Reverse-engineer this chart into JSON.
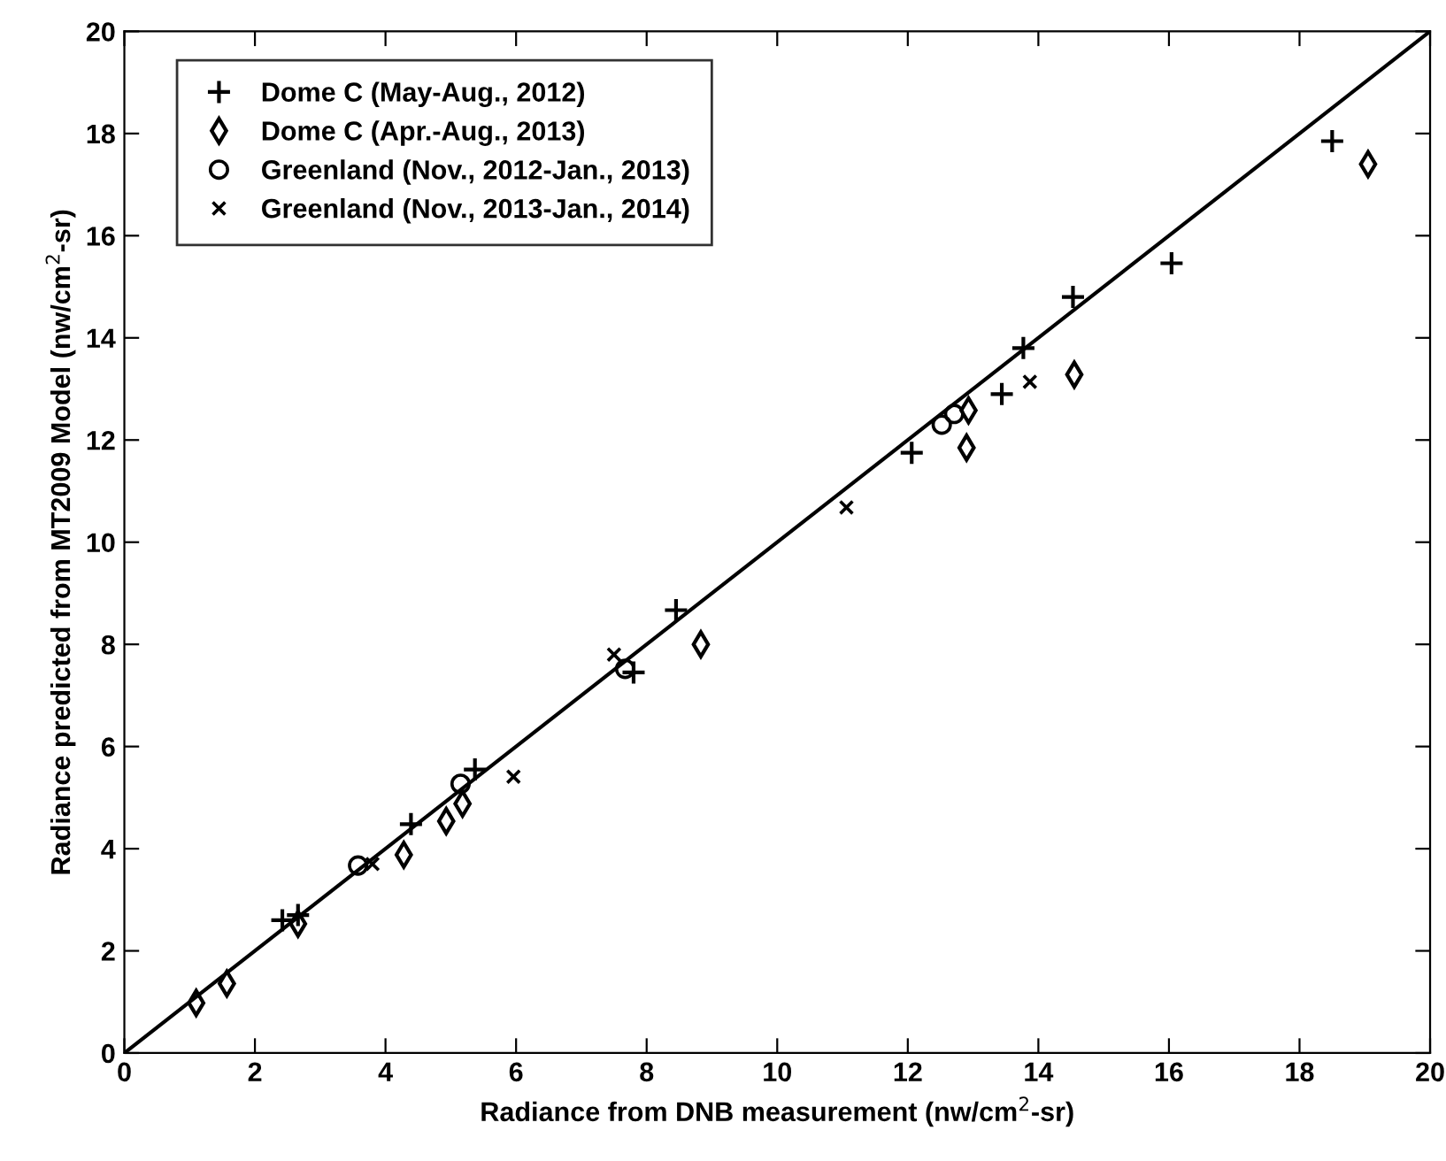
{
  "chart_data": {
    "type": "scatter",
    "xlabel": "Radiance from DNB measurement (nw/cm$^{2}$-sr)",
    "ylabel": "Radiance predicted from MT2009 Model (nw/cm$^{2}$-sr)",
    "xlim": [
      0,
      20
    ],
    "ylim": [
      0,
      20
    ],
    "xticks": [
      0,
      2,
      4,
      6,
      8,
      10,
      12,
      14,
      16,
      18,
      20
    ],
    "yticks": [
      0,
      2,
      4,
      6,
      8,
      10,
      12,
      14,
      16,
      18,
      20
    ],
    "grid": false,
    "legend": "top left",
    "series": [
      {
        "name": "Dome C (May-Aug., 2012)",
        "color": "#000000",
        "marker": "plus",
        "x": [
          2.42,
          2.66,
          4.39,
          5.37,
          7.8,
          8.45,
          12.06,
          13.44,
          13.77,
          14.53,
          16.04,
          18.5
        ],
        "values": [
          2.6,
          2.7,
          4.48,
          5.55,
          7.45,
          8.67,
          11.75,
          12.9,
          13.8,
          14.8,
          15.46,
          17.85
        ]
      },
      {
        "name": "Dome C (Apr.-Aug., 2013)",
        "color": "#000000",
        "marker": "diamond",
        "x": [
          1.1,
          1.57,
          2.66,
          4.28,
          4.93,
          5.18,
          8.83,
          12.9,
          12.93,
          14.55,
          19.05
        ],
        "values": [
          0.98,
          1.36,
          2.53,
          3.88,
          4.54,
          4.88,
          8.0,
          11.85,
          12.58,
          13.28,
          17.4
        ]
      },
      {
        "name": "Greenland (Nov., 2012-Jan., 2013)",
        "color": "#000000",
        "marker": "circle",
        "x": [
          3.58,
          5.15,
          7.67,
          12.52,
          12.71
        ],
        "values": [
          3.67,
          5.27,
          7.52,
          12.3,
          12.51
        ]
      },
      {
        "name": "Greenland (Nov., 2013-Jan., 2014)",
        "color": "#000000",
        "marker": "cross",
        "x": [
          3.8,
          5.96,
          7.5,
          11.06,
          13.87
        ],
        "values": [
          3.7,
          5.41,
          7.8,
          10.68,
          13.14
        ]
      },
      {
        "type": "line",
        "color": "#000000",
        "x": [
          0,
          20
        ],
        "values": [
          0,
          20
        ],
        "line_style": "solid"
      }
    ]
  }
}
